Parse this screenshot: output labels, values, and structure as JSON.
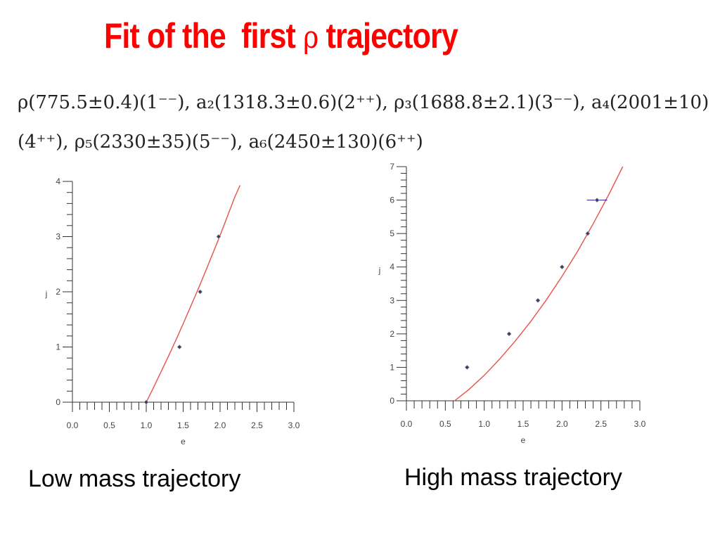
{
  "slide": {
    "title_prefix": "Fit of the  first ",
    "title_symbol": "ρ",
    "title_suffix": " trajectory",
    "formula": "ρ(775.5±0.4)(1⁻⁻), a₂(1318.3±0.6)(2⁺⁺), ρ₃(1688.8±2.1)(3⁻⁻), a₄(2001±10)(4⁺⁺), ρ₅(2330±35)(5⁻⁻), a₆(2450±130)(6⁺⁺)",
    "caption_left": "Low mass trajectory",
    "caption_right": "High mass trajectory"
  },
  "chart_data": [
    {
      "type": "scatter",
      "title": "",
      "xlabel": "e",
      "ylabel": "j",
      "xlim": [
        0,
        3
      ],
      "ylim": [
        0,
        4
      ],
      "x_ticks": [
        "0.0",
        "0.5",
        "1.0",
        "1.5",
        "2.0",
        "2.5",
        "3.0"
      ],
      "y_ticks": [
        "0",
        "1",
        "2",
        "3",
        "4"
      ],
      "points": [
        {
          "x": 1.0,
          "y": 0
        },
        {
          "x": 1.45,
          "y": 1
        },
        {
          "x": 1.73,
          "y": 2
        },
        {
          "x": 1.98,
          "y": 3
        }
      ],
      "fit_curve": [
        [
          1.0,
          0
        ],
        [
          1.1,
          0.27
        ],
        [
          1.2,
          0.55
        ],
        [
          1.3,
          0.83
        ],
        [
          1.4,
          1.12
        ],
        [
          1.5,
          1.42
        ],
        [
          1.6,
          1.73
        ],
        [
          1.7,
          2.04
        ],
        [
          1.8,
          2.36
        ],
        [
          1.9,
          2.69
        ],
        [
          2.0,
          3.02
        ],
        [
          2.1,
          3.37
        ],
        [
          2.2,
          3.72
        ],
        [
          2.27,
          3.93
        ]
      ],
      "curve_color": "#e8514a",
      "point_color": "#3b3b5c"
    },
    {
      "type": "scatter",
      "title": "",
      "xlabel": "e",
      "ylabel": "j",
      "xlim": [
        0,
        3
      ],
      "ylim": [
        0,
        7
      ],
      "x_ticks": [
        "0.0",
        "0.5",
        "1.0",
        "1.5",
        "2.0",
        "2.5",
        "3.0"
      ],
      "y_ticks": [
        "0",
        "1",
        "2",
        "3",
        "4",
        "5",
        "6",
        "7"
      ],
      "points": [
        {
          "x": 0.78,
          "y": 1
        },
        {
          "x": 1.32,
          "y": 2
        },
        {
          "x": 1.69,
          "y": 3
        },
        {
          "x": 2.0,
          "y": 4
        },
        {
          "x": 2.33,
          "y": 5
        },
        {
          "x": 2.45,
          "y": 6,
          "x_err": 0.13
        }
      ],
      "fit_curve": [
        [
          0.62,
          0
        ],
        [
          0.8,
          0.33
        ],
        [
          1.0,
          0.76
        ],
        [
          1.2,
          1.25
        ],
        [
          1.4,
          1.79
        ],
        [
          1.6,
          2.38
        ],
        [
          1.8,
          3.02
        ],
        [
          2.0,
          3.72
        ],
        [
          2.2,
          4.47
        ],
        [
          2.4,
          5.29
        ],
        [
          2.6,
          6.16
        ],
        [
          2.78,
          7.0
        ]
      ],
      "curve_color": "#e8514a",
      "point_color": "#3b3b5c",
      "error_color": "#1c1c8c"
    }
  ]
}
